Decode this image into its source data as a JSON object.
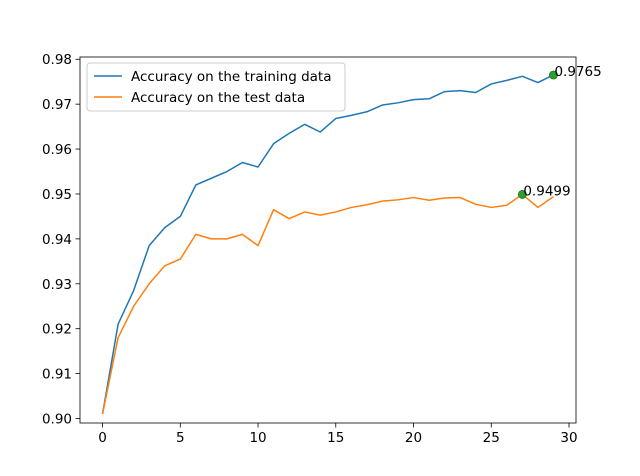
{
  "chart_data": {
    "type": "line",
    "xlim": [
      -1.45,
      30.45
    ],
    "ylim": [
      0.899,
      0.9805
    ],
    "x_ticks": [
      0,
      5,
      10,
      15,
      20,
      25,
      30
    ],
    "x_tick_labels": [
      "0",
      "5",
      "10",
      "15",
      "20",
      "25",
      "30"
    ],
    "y_ticks": [
      0.9,
      0.91,
      0.92,
      0.93,
      0.94,
      0.95,
      0.96,
      0.97,
      0.98
    ],
    "y_tick_labels": [
      "0.90",
      "0.91",
      "0.92",
      "0.93",
      "0.94",
      "0.95",
      "0.96",
      "0.97",
      "0.98"
    ],
    "grid": false,
    "legend_position": "top-left",
    "series": [
      {
        "name": "Accuracy on the training data",
        "color": "#1f77b4",
        "x": [
          0,
          1,
          2,
          3,
          4,
          5,
          6,
          7,
          8,
          9,
          10,
          11,
          12,
          13,
          14,
          15,
          16,
          17,
          18,
          19,
          20,
          21,
          22,
          23,
          24,
          25,
          26,
          27,
          28,
          29
        ],
        "values": [
          0.901,
          0.921,
          0.9285,
          0.9385,
          0.9425,
          0.945,
          0.952,
          0.9535,
          0.955,
          0.957,
          0.956,
          0.9612,
          0.9635,
          0.9655,
          0.9638,
          0.9668,
          0.9675,
          0.9683,
          0.9698,
          0.9703,
          0.971,
          0.9712,
          0.9728,
          0.973,
          0.9726,
          0.9745,
          0.9753,
          0.9762,
          0.9748,
          0.9765
        ]
      },
      {
        "name": "Accuracy on the test data",
        "color": "#ff7f0e",
        "x": [
          0,
          1,
          2,
          3,
          4,
          5,
          6,
          7,
          8,
          9,
          10,
          11,
          12,
          13,
          14,
          15,
          16,
          17,
          18,
          19,
          20,
          21,
          22,
          23,
          24,
          25,
          26,
          27,
          28,
          29
        ],
        "values": [
          0.901,
          0.918,
          0.925,
          0.93,
          0.934,
          0.9355,
          0.941,
          0.94,
          0.94,
          0.941,
          0.9385,
          0.9465,
          0.9445,
          0.946,
          0.9453,
          0.946,
          0.947,
          0.9476,
          0.9484,
          0.9487,
          0.9492,
          0.9486,
          0.9491,
          0.9492,
          0.9477,
          0.947,
          0.9475,
          0.9499,
          0.947,
          0.9494
        ]
      }
    ],
    "markers": [
      {
        "x": 29,
        "y": 0.9765,
        "label": "0.9765",
        "color": "#2ca02c"
      },
      {
        "x": 27,
        "y": 0.9499,
        "label": "0.9499",
        "color": "#2ca02c"
      }
    ]
  }
}
